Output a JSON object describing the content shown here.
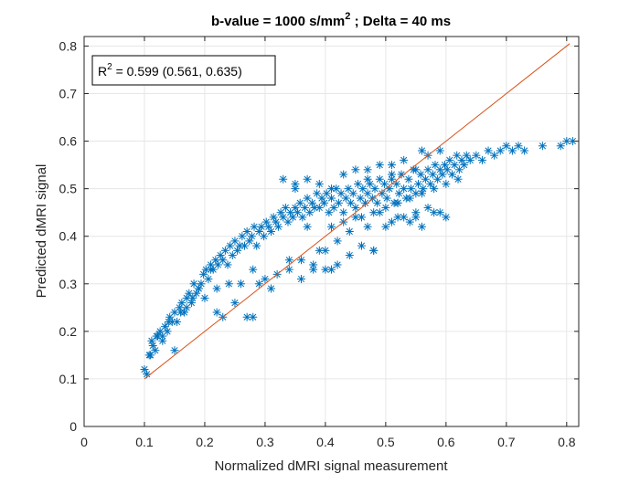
{
  "chart_data": {
    "type": "scatter",
    "title_main": "b-value = 1000 s/mm",
    "title_sup": "2",
    "title_tail": " ; Delta = 40 ms",
    "xlabel": "Normalized dMRI signal measurement",
    "ylabel": "Predicted dMRI signal",
    "xlim": [
      0,
      0.82
    ],
    "ylim": [
      0,
      0.82
    ],
    "xticks": [
      0,
      0.1,
      0.2,
      0.3,
      0.4,
      0.5,
      0.6,
      0.7,
      0.8
    ],
    "yticks": [
      0,
      0.1,
      0.2,
      0.3,
      0.4,
      0.5,
      0.6,
      0.7,
      0.8
    ],
    "xtick_labels": [
      "0",
      "0.1",
      "0.2",
      "0.3",
      "0.4",
      "0.5",
      "0.6",
      "0.7",
      "0.8"
    ],
    "ytick_labels": [
      "0",
      "0.1",
      "0.2",
      "0.3",
      "0.4",
      "0.5",
      "0.6",
      "0.7",
      "0.8"
    ],
    "grid": true,
    "annotation": {
      "r_base": "R",
      "r_sup": "2",
      "r_text": " = 0.599 (0.561, 0.635)",
      "placement": "top-left"
    },
    "colors": {
      "points": "#0072BD",
      "line": "#D95319",
      "grid": "#e6e6e6",
      "axis": "#262626"
    },
    "marker": "asterisk",
    "series": [
      {
        "marker": "asterisk",
        "x": [
          0.1,
          0.104,
          0.108,
          0.112,
          0.114,
          0.118,
          0.122,
          0.126,
          0.13,
          0.134,
          0.138,
          0.142,
          0.146,
          0.15,
          0.154,
          0.158,
          0.162,
          0.166,
          0.17,
          0.174,
          0.178,
          0.182,
          0.186,
          0.19,
          0.194,
          0.198,
          0.202,
          0.206,
          0.21,
          0.214,
          0.218,
          0.222,
          0.226,
          0.23,
          0.234,
          0.238,
          0.242,
          0.246,
          0.25,
          0.254,
          0.258,
          0.262,
          0.266,
          0.27,
          0.274,
          0.278,
          0.282,
          0.286,
          0.29,
          0.294,
          0.298,
          0.302,
          0.306,
          0.31,
          0.314,
          0.318,
          0.322,
          0.326,
          0.33,
          0.334,
          0.338,
          0.342,
          0.346,
          0.35,
          0.354,
          0.358,
          0.362,
          0.366,
          0.37,
          0.374,
          0.378,
          0.382,
          0.386,
          0.39,
          0.394,
          0.398,
          0.402,
          0.406,
          0.41,
          0.414,
          0.418,
          0.422,
          0.426,
          0.43,
          0.434,
          0.438,
          0.442,
          0.446,
          0.45,
          0.454,
          0.458,
          0.462,
          0.466,
          0.47,
          0.474,
          0.478,
          0.482,
          0.486,
          0.49,
          0.494,
          0.498,
          0.502,
          0.506,
          0.51,
          0.514,
          0.518,
          0.522,
          0.526,
          0.53,
          0.534,
          0.538,
          0.542,
          0.546,
          0.55,
          0.554,
          0.558,
          0.562,
          0.566,
          0.57,
          0.574,
          0.578,
          0.582,
          0.586,
          0.59,
          0.594,
          0.598,
          0.602,
          0.606,
          0.61,
          0.614,
          0.618,
          0.622,
          0.626,
          0.63,
          0.634,
          0.64,
          0.65,
          0.66,
          0.67,
          0.68,
          0.69,
          0.7,
          0.71,
          0.72,
          0.73,
          0.76,
          0.79,
          0.8,
          0.81,
          0.12,
          0.15,
          0.18,
          0.22,
          0.25,
          0.28,
          0.31,
          0.34,
          0.36,
          0.38,
          0.4,
          0.42,
          0.44,
          0.46,
          0.48,
          0.5,
          0.52,
          0.54,
          0.56,
          0.58,
          0.6,
          0.62,
          0.35,
          0.37,
          0.39,
          0.41,
          0.43,
          0.45,
          0.47,
          0.49,
          0.51,
          0.53,
          0.55,
          0.57,
          0.59,
          0.41,
          0.43,
          0.45,
          0.47,
          0.49,
          0.51,
          0.53,
          0.55,
          0.57,
          0.59,
          0.6,
          0.5,
          0.52,
          0.54,
          0.56,
          0.58,
          0.48,
          0.46,
          0.44,
          0.42,
          0.4,
          0.38,
          0.36,
          0.34,
          0.32,
          0.3,
          0.28,
          0.26,
          0.24,
          0.22,
          0.2,
          0.19,
          0.17,
          0.16,
          0.14,
          0.13,
          0.11,
          0.21,
          0.23,
          0.27,
          0.29,
          0.33,
          0.35,
          0.37,
          0.39,
          0.41,
          0.48,
          0.51,
          0.55,
          0.56,
          0.52,
          0.47
        ],
        "y": [
          0.12,
          0.11,
          0.15,
          0.18,
          0.17,
          0.16,
          0.19,
          0.2,
          0.19,
          0.21,
          0.2,
          0.23,
          0.22,
          0.24,
          0.22,
          0.25,
          0.26,
          0.24,
          0.27,
          0.28,
          0.26,
          0.3,
          0.28,
          0.29,
          0.3,
          0.32,
          0.33,
          0.31,
          0.34,
          0.33,
          0.35,
          0.34,
          0.36,
          0.35,
          0.37,
          0.34,
          0.38,
          0.36,
          0.39,
          0.37,
          0.38,
          0.4,
          0.38,
          0.41,
          0.39,
          0.4,
          0.42,
          0.38,
          0.41,
          0.42,
          0.4,
          0.43,
          0.42,
          0.41,
          0.44,
          0.43,
          0.42,
          0.45,
          0.44,
          0.46,
          0.43,
          0.45,
          0.44,
          0.46,
          0.45,
          0.47,
          0.44,
          0.46,
          0.48,
          0.45,
          0.47,
          0.46,
          0.49,
          0.46,
          0.48,
          0.47,
          0.49,
          0.45,
          0.48,
          0.46,
          0.5,
          0.47,
          0.49,
          0.45,
          0.48,
          0.5,
          0.47,
          0.49,
          0.46,
          0.51,
          0.48,
          0.5,
          0.47,
          0.49,
          0.51,
          0.48,
          0.5,
          0.47,
          0.52,
          0.49,
          0.51,
          0.48,
          0.5,
          0.52,
          0.47,
          0.51,
          0.49,
          0.53,
          0.5,
          0.48,
          0.52,
          0.5,
          0.54,
          0.49,
          0.51,
          0.53,
          0.5,
          0.52,
          0.54,
          0.51,
          0.53,
          0.55,
          0.52,
          0.54,
          0.53,
          0.55,
          0.54,
          0.56,
          0.53,
          0.55,
          0.57,
          0.54,
          0.56,
          0.55,
          0.57,
          0.56,
          0.57,
          0.56,
          0.58,
          0.57,
          0.58,
          0.59,
          0.58,
          0.59,
          0.58,
          0.59,
          0.59,
          0.6,
          0.6,
          0.19,
          0.16,
          0.27,
          0.24,
          0.26,
          0.23,
          0.29,
          0.33,
          0.35,
          0.33,
          0.37,
          0.39,
          0.41,
          0.44,
          0.45,
          0.46,
          0.47,
          0.48,
          0.49,
          0.5,
          0.51,
          0.52,
          0.51,
          0.52,
          0.51,
          0.5,
          0.53,
          0.54,
          0.52,
          0.55,
          0.53,
          0.56,
          0.54,
          0.57,
          0.58,
          0.42,
          0.43,
          0.44,
          0.42,
          0.45,
          0.43,
          0.44,
          0.45,
          0.46,
          0.45,
          0.44,
          0.42,
          0.44,
          0.43,
          0.42,
          0.45,
          0.37,
          0.38,
          0.36,
          0.34,
          0.33,
          0.34,
          0.31,
          0.35,
          0.32,
          0.31,
          0.33,
          0.3,
          0.3,
          0.29,
          0.27,
          0.29,
          0.25,
          0.24,
          0.22,
          0.18,
          0.15,
          0.33,
          0.23,
          0.23,
          0.3,
          0.52,
          0.5,
          0.42,
          0.37,
          0.33,
          0.37,
          0.55,
          0.44,
          0.58,
          0.47,
          0.54
        ]
      },
      {
        "type": "line",
        "x": [
          0.1,
          0.805
        ],
        "y": [
          0.1,
          0.805
        ]
      }
    ]
  }
}
